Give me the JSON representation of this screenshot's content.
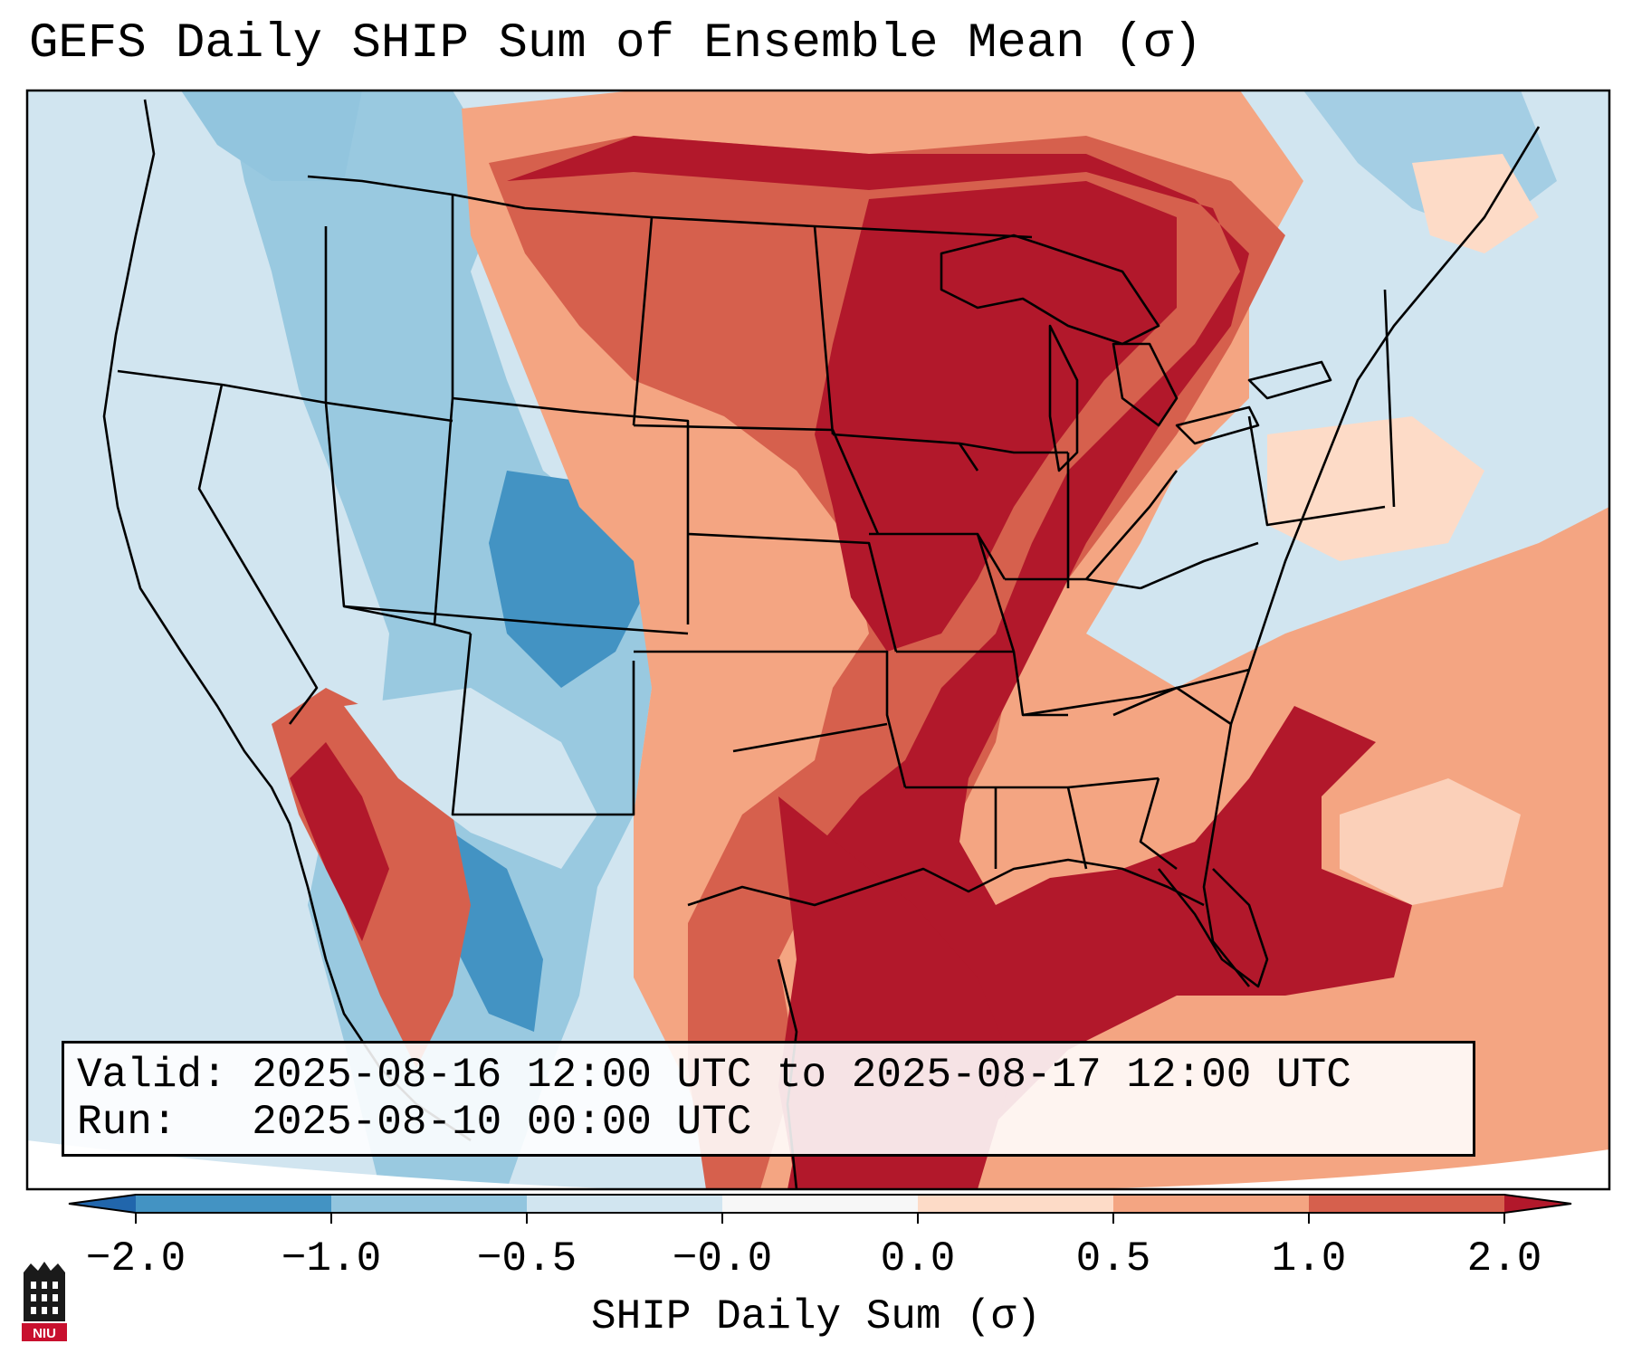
{
  "title": "GEFS Daily SHIP Sum of Ensemble Mean (σ)",
  "map": {
    "region": "Contiguous United States",
    "basemap_lines": "black state and coastline boundaries",
    "field": "SHIP daily sum anomaly"
  },
  "info": {
    "valid": "Valid: 2025-08-16 12:00 UTC to 2025-08-17 12:00 UTC",
    "run": "Run:   2025-08-10 00:00 UTC"
  },
  "colorbar": {
    "label": "SHIP Daily Sum (σ)",
    "ticks": [
      "−2.0",
      "−1.0",
      "−0.5",
      "−0.0",
      "0.0",
      "0.5",
      "1.0",
      "2.0"
    ],
    "bins": [
      {
        "range": "<-2.0",
        "color": "#2166ac"
      },
      {
        "range": "-2.0 to -1.0",
        "color": "#4393c3"
      },
      {
        "range": "-1.0 to -0.5",
        "color": "#92c5de"
      },
      {
        "range": "-0.5 to 0.0",
        "color": "#d1e5f0"
      },
      {
        "range": "0.0",
        "color": "#f7f7f7"
      },
      {
        "range": "0.0 to 0.5",
        "color": "#fddbc7"
      },
      {
        "range": "0.5 to 1.0",
        "color": "#f4a582"
      },
      {
        "range": "1.0 to 2.0",
        "color": "#d6604d"
      },
      {
        "range": ">2.0",
        "color": "#b2182b"
      }
    ]
  },
  "logo": {
    "text": "NIU"
  }
}
